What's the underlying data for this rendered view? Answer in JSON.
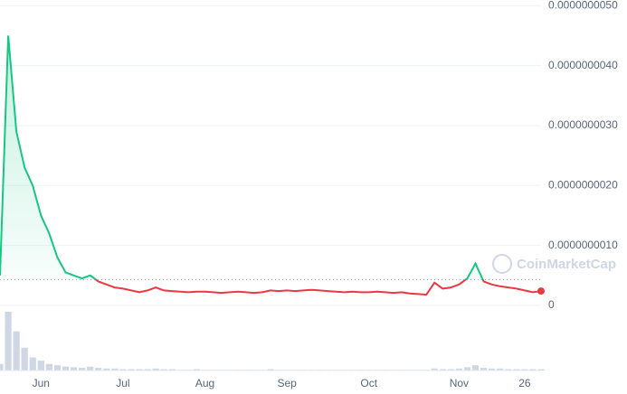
{
  "chart_data": {
    "type": "line",
    "watermark": "CoinMarketCap",
    "categories": [
      null,
      null,
      null,
      null,
      null,
      "Jun",
      null,
      null,
      null,
      null,
      null,
      null,
      null,
      null,
      null,
      "Jul",
      null,
      null,
      null,
      null,
      null,
      null,
      null,
      null,
      null,
      "Aug",
      null,
      null,
      null,
      null,
      null,
      null,
      null,
      null,
      null,
      "Sep",
      null,
      null,
      null,
      null,
      null,
      null,
      null,
      null,
      null,
      "Oct",
      null,
      null,
      null,
      null,
      null,
      null,
      null,
      null,
      null,
      null,
      "Nov",
      null,
      null,
      null,
      null,
      null,
      null,
      null,
      "26",
      null,
      null
    ],
    "values": [
      5e-10,
      4.5e-09,
      2.9e-09,
      2.3e-09,
      2e-09,
      1.5e-09,
      1.2e-09,
      8e-10,
      5.5e-10,
      5e-10,
      4.5e-10,
      5e-10,
      4e-10,
      3.5e-10,
      3e-10,
      2.8e-10,
      2.5e-10,
      2.2e-10,
      2.5e-10,
      3e-10,
      2.5e-10,
      2.4e-10,
      2.3e-10,
      2.2e-10,
      2.3e-10,
      2.3e-10,
      2.2e-10,
      2.1e-10,
      2.2e-10,
      2.3e-10,
      2.2e-10,
      2.1e-10,
      2.2e-10,
      2.5e-10,
      2.4e-10,
      2.5e-10,
      2.4e-10,
      2.5e-10,
      2.6e-10,
      2.5e-10,
      2.4e-10,
      2.3e-10,
      2.2e-10,
      2.3e-10,
      2.2e-10,
      2.2e-10,
      2.3e-10,
      2.2e-10,
      2.1e-10,
      2.2e-10,
      2e-10,
      1.9e-10,
      1.8e-10,
      3.8e-10,
      2.8e-10,
      3e-10,
      3.5e-10,
      4.5e-10,
      7e-10,
      4e-10,
      3.5e-10,
      3.2e-10,
      3e-10,
      2.8e-10,
      2.5e-10,
      2.2e-10,
      2.4e-10
    ],
    "volume": [
      10,
      90,
      60,
      35,
      20,
      15,
      10,
      8,
      6,
      5,
      4,
      6,
      4,
      3,
      3,
      2,
      2,
      2,
      2,
      3,
      2,
      2,
      1,
      1,
      2,
      1,
      1,
      1,
      1,
      1,
      1,
      1,
      1,
      2,
      1,
      1,
      1,
      1,
      1,
      1,
      1,
      1,
      1,
      1,
      1,
      1,
      1,
      1,
      1,
      1,
      1,
      1,
      1,
      3,
      2,
      2,
      3,
      5,
      8,
      4,
      3,
      3,
      2,
      2,
      2,
      2,
      2
    ],
    "baseline": 4.3e-10,
    "up_color": "#16c784",
    "down_color": "#ea3943",
    "ylim": [
      0,
      5.2e-09
    ],
    "yticks": [
      0,
      {
        "value": 1e-09,
        "label": "0.0000000010"
      },
      {
        "value": 2e-09,
        "label": "0.0000000020"
      },
      {
        "value": 3e-09,
        "label": "0.0000000030"
      },
      {
        "value": 4e-09,
        "label": "0.0000000040"
      },
      {
        "value": 5e-09,
        "label": "0.0000000050"
      }
    ],
    "grid": true
  }
}
